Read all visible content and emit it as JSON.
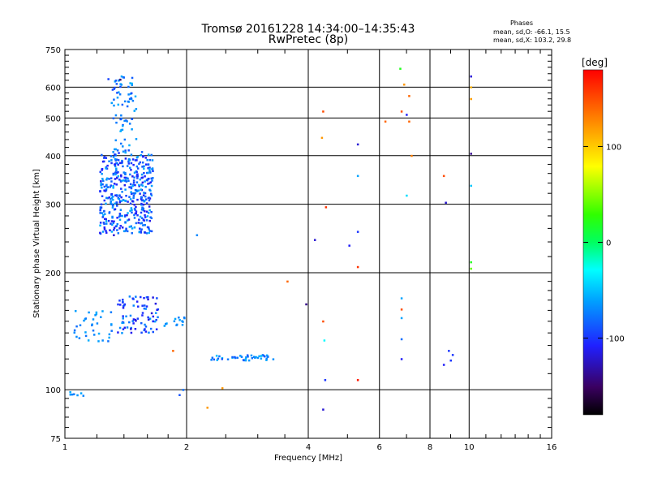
{
  "chart_data": {
    "type": "scatter",
    "title": "Tromsø 20161228 14:34:00–14:35:43",
    "subtitle": "RwPretec (8p)",
    "xlabel": "Frequency [MHz]",
    "ylabel": "Stationary phase Virtual Height [km]",
    "x_scale": "log",
    "y_scale": "log",
    "xlim": [
      1,
      16
    ],
    "ylim": [
      75,
      750
    ],
    "x_ticks": [
      1,
      2,
      4,
      6,
      8,
      10,
      16
    ],
    "y_ticks": [
      75,
      100,
      200,
      300,
      400,
      500,
      600,
      750
    ],
    "grid": true,
    "stats": {
      "heading": "Phases",
      "line_o": "mean, sd,O: -66.1, 15.5",
      "line_x": "mean, sd,X: 103.2, 29.8"
    },
    "colorbar": {
      "label": "[deg]",
      "range": [
        -180,
        180
      ],
      "ticks": [
        100,
        0,
        -100
      ]
    },
    "clusters": [
      {
        "type": "cloud",
        "f": [
          1.22,
          1.65
        ],
        "h": [
          252,
          410
        ],
        "phase": [
          -115,
          -55
        ],
        "n": 420
      },
      {
        "type": "cloud",
        "f": [
          1.3,
          1.5
        ],
        "h": [
          410,
          640
        ],
        "phase": [
          -95,
          -55
        ],
        "n": 70
      },
      {
        "type": "cloud",
        "f": [
          1.35,
          1.7
        ],
        "h": [
          140,
          175
        ],
        "phase": [
          -120,
          -60
        ],
        "n": 80
      },
      {
        "type": "cloud",
        "f": [
          1.05,
          1.32
        ],
        "h": [
          133,
          160
        ],
        "phase": [
          -80,
          -55
        ],
        "n": 35
      },
      {
        "type": "cloud",
        "f": [
          1.75,
          2.0
        ],
        "h": [
          145,
          155
        ],
        "phase": [
          -80,
          -55
        ],
        "n": 14
      },
      {
        "type": "cloud",
        "f": [
          2.3,
          3.3
        ],
        "h": [
          119,
          123
        ],
        "phase": [
          -90,
          -50
        ],
        "n": 45
      },
      {
        "type": "cloud",
        "f": [
          1.02,
          1.12
        ],
        "h": [
          96,
          101
        ],
        "phase": [
          -75,
          -55
        ],
        "n": 7
      }
    ],
    "points": [
      {
        "f": 1.28,
        "h": 630,
        "phase": -95
      },
      {
        "f": 1.37,
        "h": 628,
        "phase": -150
      },
      {
        "f": 1.45,
        "h": 615,
        "phase": -55
      },
      {
        "f": 1.38,
        "h": 640,
        "phase": -60
      },
      {
        "f": 1.32,
        "h": 250,
        "phase": -120
      },
      {
        "f": 2.12,
        "h": 250,
        "phase": -70
      },
      {
        "f": 1.96,
        "h": 100,
        "phase": -80
      },
      {
        "f": 1.92,
        "h": 97,
        "phase": -90
      },
      {
        "f": 1.85,
        "h": 126,
        "phase": 140
      },
      {
        "f": 2.25,
        "h": 90,
        "phase": 120
      },
      {
        "f": 2.45,
        "h": 101,
        "phase": 120
      },
      {
        "f": 3.55,
        "h": 190,
        "phase": 140
      },
      {
        "f": 3.95,
        "h": 166,
        "phase": -140
      },
      {
        "f": 4.15,
        "h": 243,
        "phase": -120
      },
      {
        "f": 4.35,
        "h": 520,
        "phase": 150
      },
      {
        "f": 4.32,
        "h": 445,
        "phase": 120
      },
      {
        "f": 4.42,
        "h": 295,
        "phase": 160
      },
      {
        "f": 4.35,
        "h": 150,
        "phase": 150
      },
      {
        "f": 4.38,
        "h": 134,
        "phase": -30
      },
      {
        "f": 4.4,
        "h": 106,
        "phase": -100
      },
      {
        "f": 4.35,
        "h": 89,
        "phase": -120
      },
      {
        "f": 5.05,
        "h": 235,
        "phase": -110
      },
      {
        "f": 5.3,
        "h": 255,
        "phase": -100
      },
      {
        "f": 5.3,
        "h": 207,
        "phase": 160
      },
      {
        "f": 5.3,
        "h": 106,
        "phase": 170
      },
      {
        "f": 5.3,
        "h": 428,
        "phase": -120
      },
      {
        "f": 5.3,
        "h": 355,
        "phase": -60
      },
      {
        "f": 6.2,
        "h": 490,
        "phase": 140
      },
      {
        "f": 6.75,
        "h": 670,
        "phase": 20
      },
      {
        "f": 6.8,
        "h": 520,
        "phase": 150
      },
      {
        "f": 6.9,
        "h": 610,
        "phase": 120
      },
      {
        "f": 7.1,
        "h": 570,
        "phase": 140
      },
      {
        "f": 7.0,
        "h": 510,
        "phase": -110
      },
      {
        "f": 7.1,
        "h": 490,
        "phase": 140
      },
      {
        "f": 7.2,
        "h": 400,
        "phase": 130
      },
      {
        "f": 7.0,
        "h": 316,
        "phase": -40
      },
      {
        "f": 6.8,
        "h": 172,
        "phase": -60
      },
      {
        "f": 6.8,
        "h": 161,
        "phase": 150
      },
      {
        "f": 6.8,
        "h": 153,
        "phase": -60
      },
      {
        "f": 6.8,
        "h": 135,
        "phase": -80
      },
      {
        "f": 6.8,
        "h": 120,
        "phase": -110
      },
      {
        "f": 8.65,
        "h": 355,
        "phase": 150
      },
      {
        "f": 8.75,
        "h": 303,
        "phase": -120
      },
      {
        "f": 8.65,
        "h": 116,
        "phase": -110
      },
      {
        "f": 8.9,
        "h": 126,
        "phase": -100
      },
      {
        "f": 9.1,
        "h": 123,
        "phase": -100
      },
      {
        "f": 9.0,
        "h": 119,
        "phase": -100
      },
      {
        "f": 10.1,
        "h": 640,
        "phase": -120
      },
      {
        "f": 10.1,
        "h": 600,
        "phase": 110
      },
      {
        "f": 10.1,
        "h": 560,
        "phase": 120
      },
      {
        "f": 10.1,
        "h": 405,
        "phase": -140
      },
      {
        "f": 10.1,
        "h": 335,
        "phase": -50
      },
      {
        "f": 10.1,
        "h": 213,
        "phase": 20
      },
      {
        "f": 10.1,
        "h": 205,
        "phase": 40
      }
    ]
  }
}
